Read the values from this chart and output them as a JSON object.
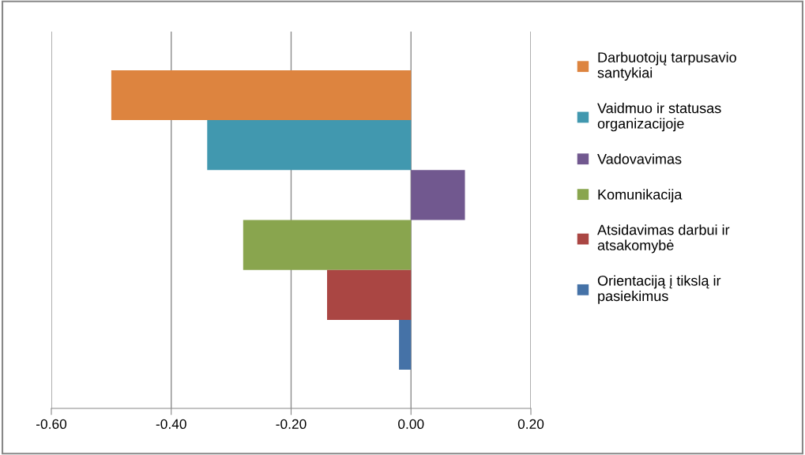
{
  "chart_data": {
    "type": "bar",
    "orientation": "horizontal",
    "categories": [
      null
    ],
    "series": [
      {
        "name": "Darbuotojų tarpusavio santykiai",
        "color": "#dd843f",
        "values": [
          -0.5
        ]
      },
      {
        "name": "Vaidmuo ir statusas organizacijoje",
        "color": "#4198af",
        "values": [
          -0.34
        ]
      },
      {
        "name": "Vadovavimas",
        "color": "#71588f",
        "values": [
          0.09
        ]
      },
      {
        "name": "Komunikacija",
        "color": "#89a54e",
        "values": [
          -0.28
        ]
      },
      {
        "name": "Atsidavimas darbui ir atsakomybė",
        "color": "#aa4643",
        "values": [
          -0.14
        ]
      },
      {
        "name": "Orientaciją į tikslą ir pasiekimus",
        "color": "#4572a7",
        "values": [
          -0.02
        ]
      }
    ],
    "xlim": [
      -0.6,
      0.2
    ],
    "xticks": [
      {
        "value": -0.6,
        "label": "-0.60"
      },
      {
        "value": -0.4,
        "label": "-0.40"
      },
      {
        "value": -0.2,
        "label": "-0.20"
      },
      {
        "value": 0,
        "label": "0.00"
      },
      {
        "value": 0.2,
        "label": "0.20"
      }
    ],
    "grid": "x",
    "legend": "right"
  }
}
